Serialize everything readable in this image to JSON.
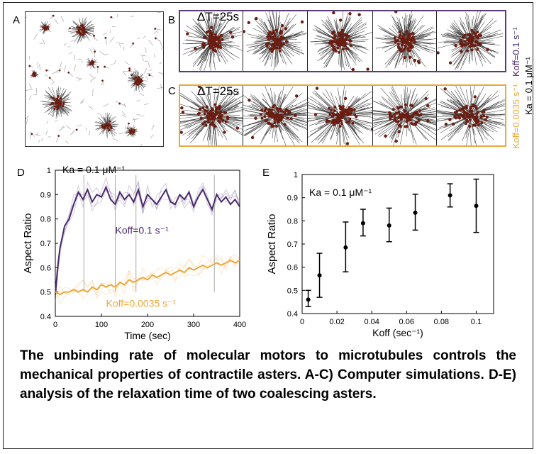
{
  "panels": {
    "a_label": "A",
    "b_label": "B",
    "c_label": "C",
    "d_label": "D",
    "e_label": "E",
    "b_dt": "ΔT=25s",
    "c_dt": "ΔT=25s",
    "b_side_label": "Koff=0.1 s⁻¹",
    "c_side_label": "Koff=0.0035 s⁻¹",
    "bc_ka_label": "Ka = 0.1 μM⁻¹"
  },
  "colors": {
    "purple": "#4b2a6b",
    "orange": "#eea83a",
    "motor": "#6b1d12"
  },
  "chart_data": [
    {
      "type": "line",
      "annotation_top": "Ka = 0.1 μM⁻¹",
      "xlabel": "Time (sec)",
      "ylabel": "Aspect Ratio",
      "xlim": [
        0,
        400
      ],
      "ylim": [
        0.4,
        1.0
      ],
      "xticks": [
        "0",
        "100",
        "200",
        "300",
        "400"
      ],
      "yticks": [
        "0.4",
        "0.5",
        "0.6",
        "0.7",
        "0.8",
        "0.9",
        "1"
      ],
      "series": [
        {
          "name": "Koff=0.1 s⁻¹",
          "color": "#4b2a6b",
          "x": [
            0,
            5,
            10,
            20,
            30,
            40,
            50,
            60,
            70,
            80,
            90,
            100,
            110,
            120,
            130,
            140,
            150,
            160,
            170,
            180,
            190,
            200,
            210,
            220,
            230,
            240,
            250,
            260,
            270,
            280,
            290,
            300,
            310,
            320,
            330,
            340,
            350,
            360,
            370,
            380,
            390,
            400
          ],
          "values": [
            0.49,
            0.6,
            0.68,
            0.77,
            0.8,
            0.86,
            0.91,
            0.88,
            0.92,
            0.87,
            0.9,
            0.89,
            0.93,
            0.88,
            0.86,
            0.91,
            0.88,
            0.9,
            0.87,
            0.92,
            0.85,
            0.9,
            0.88,
            0.86,
            0.89,
            0.92,
            0.87,
            0.86,
            0.9,
            0.88,
            0.91,
            0.85,
            0.89,
            0.92,
            0.88,
            0.84,
            0.9,
            0.87,
            0.89,
            0.86,
            0.88,
            0.85
          ]
        },
        {
          "name": "Koff=0.0035 s⁻¹",
          "color": "#eea83a",
          "x": [
            0,
            10,
            20,
            30,
            40,
            50,
            60,
            70,
            80,
            90,
            100,
            110,
            120,
            130,
            140,
            150,
            160,
            170,
            180,
            190,
            200,
            210,
            220,
            230,
            240,
            250,
            260,
            270,
            280,
            290,
            300,
            310,
            320,
            330,
            340,
            350,
            360,
            370,
            380,
            390,
            400
          ],
          "values": [
            0.5,
            0.49,
            0.5,
            0.5,
            0.51,
            0.5,
            0.51,
            0.5,
            0.52,
            0.51,
            0.53,
            0.52,
            0.53,
            0.52,
            0.54,
            0.53,
            0.55,
            0.54,
            0.55,
            0.56,
            0.55,
            0.57,
            0.56,
            0.57,
            0.58,
            0.57,
            0.58,
            0.59,
            0.58,
            0.6,
            0.59,
            0.6,
            0.61,
            0.6,
            0.61,
            0.62,
            0.61,
            0.62,
            0.63,
            0.62,
            0.63
          ]
        }
      ]
    },
    {
      "type": "scatter",
      "annotation_top": "Ka = 0.1 μM⁻¹",
      "xlabel": "Koff (sec⁻¹)",
      "ylabel": "Aspect Ratio",
      "xlim": [
        0,
        0.11
      ],
      "ylim": [
        0.4,
        1.0
      ],
      "xticks": [
        "0",
        "0.02",
        "0.04",
        "0.06",
        "0.08",
        "0.1"
      ],
      "yticks": [
        "0.4",
        "0.5",
        "0.6",
        "0.7",
        "0.8",
        "0.9",
        "1"
      ],
      "error_bars": true,
      "points": [
        {
          "x": 0.0035,
          "y": 0.46,
          "lo": 0.43,
          "hi": 0.5
        },
        {
          "x": 0.01,
          "y": 0.565,
          "lo": 0.47,
          "hi": 0.66
        },
        {
          "x": 0.025,
          "y": 0.685,
          "lo": 0.58,
          "hi": 0.795
        },
        {
          "x": 0.035,
          "y": 0.79,
          "lo": 0.735,
          "hi": 0.85
        },
        {
          "x": 0.05,
          "y": 0.78,
          "lo": 0.71,
          "hi": 0.855
        },
        {
          "x": 0.065,
          "y": 0.835,
          "lo": 0.76,
          "hi": 0.915
        },
        {
          "x": 0.085,
          "y": 0.91,
          "lo": 0.86,
          "hi": 0.96
        },
        {
          "x": 0.1,
          "y": 0.865,
          "lo": 0.75,
          "hi": 0.98
        }
      ]
    }
  ],
  "caption": "The unbinding rate of molecular motors to microtubules controls the mechanical properties of contractile asters. A-C) Computer simulations. D-E) analysis of the relaxation time of two coalescing asters."
}
